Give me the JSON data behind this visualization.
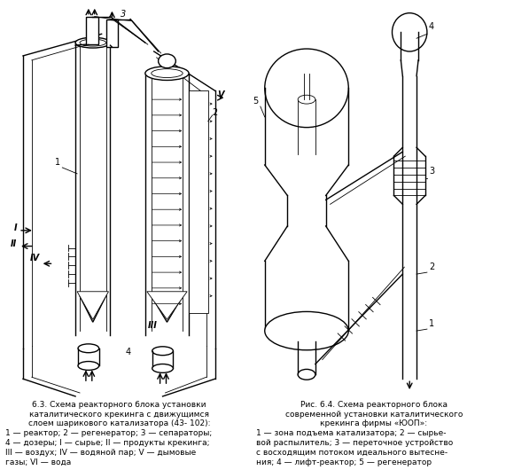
{
  "fig_width": 5.71,
  "fig_height": 5.3,
  "dpi": 100,
  "bg_color": "#ffffff",
  "caption_left": {
    "line1": "6.3. Схема реакторного блока установки",
    "line2": "каталитического крекинга с движущимся",
    "line3": "слоем шарикового катализатора (43- 102):",
    "line4": "1 — реактор; 2 — регенератор; 3 — сепараторы;",
    "line5": "4 — дозеры; I — сырье; II — продукты крекинга;",
    "line6": "III — воздух; IV — водяной пар; V — дымовые",
    "line7": "газы; VI — вода"
  },
  "caption_right": {
    "line1": "Рис. 6.4. Схема реакторного блока",
    "line2": "современной установки каталитического",
    "line3": "крекинга фирмы «ЮОП»:",
    "line4": "1 — зона подъема катализатора; 2 — сырье-",
    "line5": "вой распылитель; 3 — переточное устройство",
    "line6": "с восходящим потоком идеального вытесне-",
    "line7": "ния; 4 — лифт-реактор; 5 — регенератор"
  },
  "lw": 1.0,
  "lw_thin": 0.6,
  "lw_thick": 1.5,
  "color_main": "#000000"
}
